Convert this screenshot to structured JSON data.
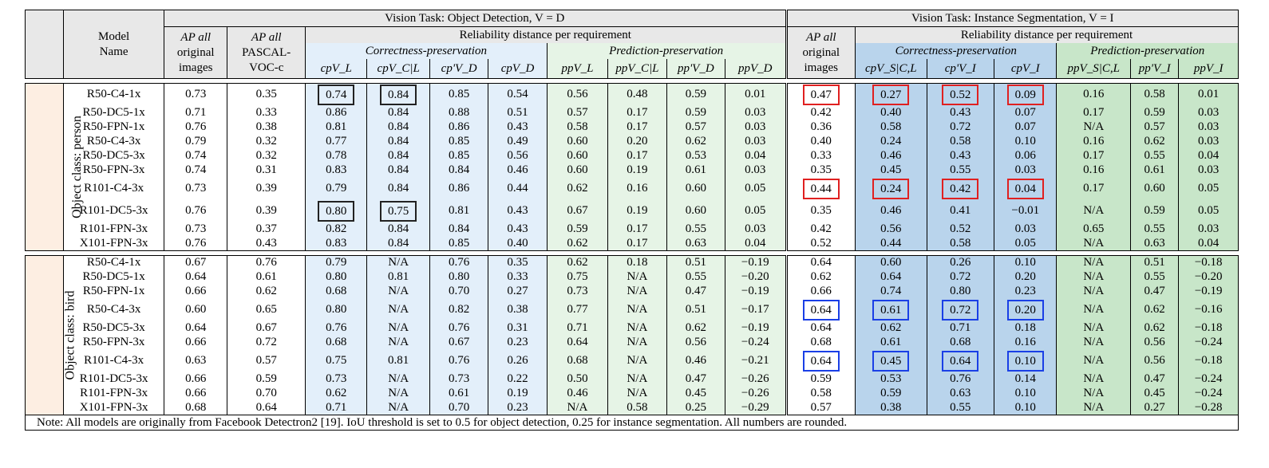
{
  "header": {
    "model_name": [
      "Model",
      "Name"
    ],
    "od_group": "Vision Task: Object Detection, V = D",
    "is_group": "Vision Task: Instance Segmentation, V = I",
    "ap_all": [
      "AP all",
      "original",
      "images"
    ],
    "ap_voc": [
      "AP all",
      "PASCAL-",
      "VOC-c"
    ],
    "reliability_od": "Reliability distance per requirement",
    "reliability_is": "Reliability distance per requirement",
    "correctness": "Correctness-preservation",
    "prediction": "Prediction-preservation",
    "od_cols": [
      "cpV_L",
      "cpV_C|L",
      "cp'V_D",
      "cpV_D",
      "ppV_L",
      "ppV_C|L",
      "pp'V_D",
      "ppV_D"
    ],
    "is_ap": [
      "AP all",
      "original",
      "images"
    ],
    "is_cols": [
      "cpV_S|C,L",
      "cp'V_I",
      "cpV_I",
      "ppV_S|C,L",
      "pp'V_I",
      "ppV_I"
    ]
  },
  "groups": [
    {
      "label": "Object class: person",
      "rows": [
        {
          "model": "R50-C4-1x",
          "ap": "0.73",
          "voc": "0.35",
          "od": [
            "0.74",
            "0.84",
            "0.85",
            "0.54",
            "0.56",
            "0.48",
            "0.59",
            "0.01"
          ],
          "isap": "0.47",
          "is": [
            "0.27",
            "0.52",
            "0.09",
            "0.16",
            "0.58",
            "0.01"
          ]
        },
        {
          "model": "R50-DC5-1x",
          "ap": "0.71",
          "voc": "0.33",
          "od": [
            "0.86",
            "0.84",
            "0.88",
            "0.51",
            "0.57",
            "0.17",
            "0.59",
            "0.03"
          ],
          "isap": "0.42",
          "is": [
            "0.40",
            "0.43",
            "0.07",
            "0.17",
            "0.59",
            "0.03"
          ]
        },
        {
          "model": "R50-FPN-1x",
          "ap": "0.76",
          "voc": "0.38",
          "od": [
            "0.81",
            "0.84",
            "0.86",
            "0.43",
            "0.58",
            "0.17",
            "0.57",
            "0.03"
          ],
          "isap": "0.36",
          "is": [
            "0.58",
            "0.72",
            "0.07",
            "N/A",
            "0.57",
            "0.03"
          ]
        },
        {
          "model": "R50-C4-3x",
          "ap": "0.79",
          "voc": "0.32",
          "od": [
            "0.77",
            "0.84",
            "0.85",
            "0.49",
            "0.60",
            "0.20",
            "0.62",
            "0.03"
          ],
          "isap": "0.40",
          "is": [
            "0.24",
            "0.58",
            "0.10",
            "0.16",
            "0.62",
            "0.03"
          ]
        },
        {
          "model": "R50-DC5-3x",
          "ap": "0.74",
          "voc": "0.32",
          "od": [
            "0.78",
            "0.84",
            "0.85",
            "0.56",
            "0.60",
            "0.17",
            "0.53",
            "0.04"
          ],
          "isap": "0.33",
          "is": [
            "0.46",
            "0.43",
            "0.06",
            "0.17",
            "0.55",
            "0.04"
          ]
        },
        {
          "model": "R50-FPN-3x",
          "ap": "0.74",
          "voc": "0.31",
          "od": [
            "0.83",
            "0.84",
            "0.84",
            "0.46",
            "0.60",
            "0.19",
            "0.61",
            "0.03"
          ],
          "isap": "0.35",
          "is": [
            "0.45",
            "0.55",
            "0.03",
            "0.16",
            "0.61",
            "0.03"
          ]
        },
        {
          "model": "R101-C4-3x",
          "ap": "0.73",
          "voc": "0.39",
          "od": [
            "0.79",
            "0.84",
            "0.86",
            "0.44",
            "0.62",
            "0.16",
            "0.60",
            "0.05"
          ],
          "isap": "0.44",
          "is": [
            "0.24",
            "0.42",
            "0.04",
            "0.17",
            "0.60",
            "0.05"
          ]
        },
        {
          "model": "R101-DC5-3x",
          "ap": "0.76",
          "voc": "0.39",
          "od": [
            "0.80",
            "0.75",
            "0.81",
            "0.43",
            "0.67",
            "0.19",
            "0.60",
            "0.05"
          ],
          "isap": "0.35",
          "is": [
            "0.46",
            "0.41",
            "−0.01",
            "N/A",
            "0.59",
            "0.05"
          ]
        },
        {
          "model": "R101-FPN-3x",
          "ap": "0.73",
          "voc": "0.37",
          "od": [
            "0.82",
            "0.84",
            "0.84",
            "0.43",
            "0.59",
            "0.17",
            "0.55",
            "0.03"
          ],
          "isap": "0.42",
          "is": [
            "0.56",
            "0.52",
            "0.03",
            "0.65",
            "0.55",
            "0.03"
          ]
        },
        {
          "model": "X101-FPN-3x",
          "ap": "0.76",
          "voc": "0.43",
          "od": [
            "0.83",
            "0.84",
            "0.85",
            "0.40",
            "0.62",
            "0.17",
            "0.63",
            "0.04"
          ],
          "isap": "0.52",
          "is": [
            "0.44",
            "0.58",
            "0.05",
            "N/A",
            "0.63",
            "0.04"
          ]
        }
      ]
    },
    {
      "label": "Object class: bird",
      "rows": [
        {
          "model": "R50-C4-1x",
          "ap": "0.67",
          "voc": "0.76",
          "od": [
            "0.79",
            "N/A",
            "0.76",
            "0.35",
            "0.62",
            "0.18",
            "0.51",
            "−0.19"
          ],
          "isap": "0.64",
          "is": [
            "0.60",
            "0.26",
            "0.10",
            "N/A",
            "0.51",
            "−0.18"
          ]
        },
        {
          "model": "R50-DC5-1x",
          "ap": "0.64",
          "voc": "0.61",
          "od": [
            "0.80",
            "0.81",
            "0.80",
            "0.33",
            "0.75",
            "N/A",
            "0.55",
            "−0.20"
          ],
          "isap": "0.62",
          "is": [
            "0.64",
            "0.72",
            "0.20",
            "N/A",
            "0.55",
            "−0.20"
          ]
        },
        {
          "model": "R50-FPN-1x",
          "ap": "0.66",
          "voc": "0.62",
          "od": [
            "0.68",
            "N/A",
            "0.70",
            "0.27",
            "0.73",
            "N/A",
            "0.47",
            "−0.19"
          ],
          "isap": "0.66",
          "is": [
            "0.74",
            "0.80",
            "0.23",
            "N/A",
            "0.47",
            "−0.19"
          ]
        },
        {
          "model": "R50-C4-3x",
          "ap": "0.60",
          "voc": "0.65",
          "od": [
            "0.80",
            "N/A",
            "0.82",
            "0.38",
            "0.77",
            "N/A",
            "0.51",
            "−0.17"
          ],
          "isap": "0.64",
          "is": [
            "0.61",
            "0.72",
            "0.20",
            "N/A",
            "0.62",
            "−0.16"
          ]
        },
        {
          "model": "R50-DC5-3x",
          "ap": "0.64",
          "voc": "0.67",
          "od": [
            "0.76",
            "N/A",
            "0.76",
            "0.31",
            "0.71",
            "N/A",
            "0.62",
            "−0.19"
          ],
          "isap": "0.64",
          "is": [
            "0.62",
            "0.71",
            "0.18",
            "N/A",
            "0.62",
            "−0.18"
          ]
        },
        {
          "model": "R50-FPN-3x",
          "ap": "0.66",
          "voc": "0.72",
          "od": [
            "0.68",
            "N/A",
            "0.67",
            "0.23",
            "0.64",
            "N/A",
            "0.56",
            "−0.24"
          ],
          "isap": "0.68",
          "is": [
            "0.61",
            "0.68",
            "0.16",
            "N/A",
            "0.56",
            "−0.24"
          ]
        },
        {
          "model": "R101-C4-3x",
          "ap": "0.63",
          "voc": "0.57",
          "od": [
            "0.75",
            "0.81",
            "0.76",
            "0.26",
            "0.68",
            "N/A",
            "0.46",
            "−0.21"
          ],
          "isap": "0.64",
          "is": [
            "0.45",
            "0.64",
            "0.10",
            "N/A",
            "0.56",
            "−0.18"
          ]
        },
        {
          "model": "R101-DC5-3x",
          "ap": "0.66",
          "voc": "0.59",
          "od": [
            "0.73",
            "N/A",
            "0.73",
            "0.22",
            "0.50",
            "N/A",
            "0.47",
            "−0.26"
          ],
          "isap": "0.59",
          "is": [
            "0.53",
            "0.76",
            "0.14",
            "N/A",
            "0.47",
            "−0.24"
          ]
        },
        {
          "model": "R101-FPN-3x",
          "ap": "0.66",
          "voc": "0.70",
          "od": [
            "0.62",
            "N/A",
            "0.61",
            "0.19",
            "0.46",
            "N/A",
            "0.45",
            "−0.26"
          ],
          "isap": "0.58",
          "is": [
            "0.59",
            "0.63",
            "0.10",
            "N/A",
            "0.45",
            "−0.24"
          ]
        },
        {
          "model": "X101-FPN-3x",
          "ap": "0.68",
          "voc": "0.64",
          "od": [
            "0.71",
            "N/A",
            "0.70",
            "0.23",
            "N/A",
            "0.58",
            "0.25",
            "−0.29"
          ],
          "isap": "0.57",
          "is": [
            "0.38",
            "0.55",
            "0.10",
            "N/A",
            "0.27",
            "−0.28"
          ]
        }
      ]
    }
  ],
  "note": "Note: All models are originally from Facebook Detectron2 [19]. IoU threshold is set to 0.5 for object detection, 0.25 for instance segmentation. All numbers are rounded.",
  "colors": {
    "header_bg": "#e8e8e8",
    "correctness_bg": "#e3effa",
    "prediction_bg": "#e6f4e6",
    "is_correctness_bg": "#b9d4ec",
    "is_prediction_bg": "#c8e6c9",
    "class_label_bg": "#fdeee2",
    "box_black": "#222222",
    "box_red": "#e02020",
    "box_blue": "#1a3fe6"
  }
}
